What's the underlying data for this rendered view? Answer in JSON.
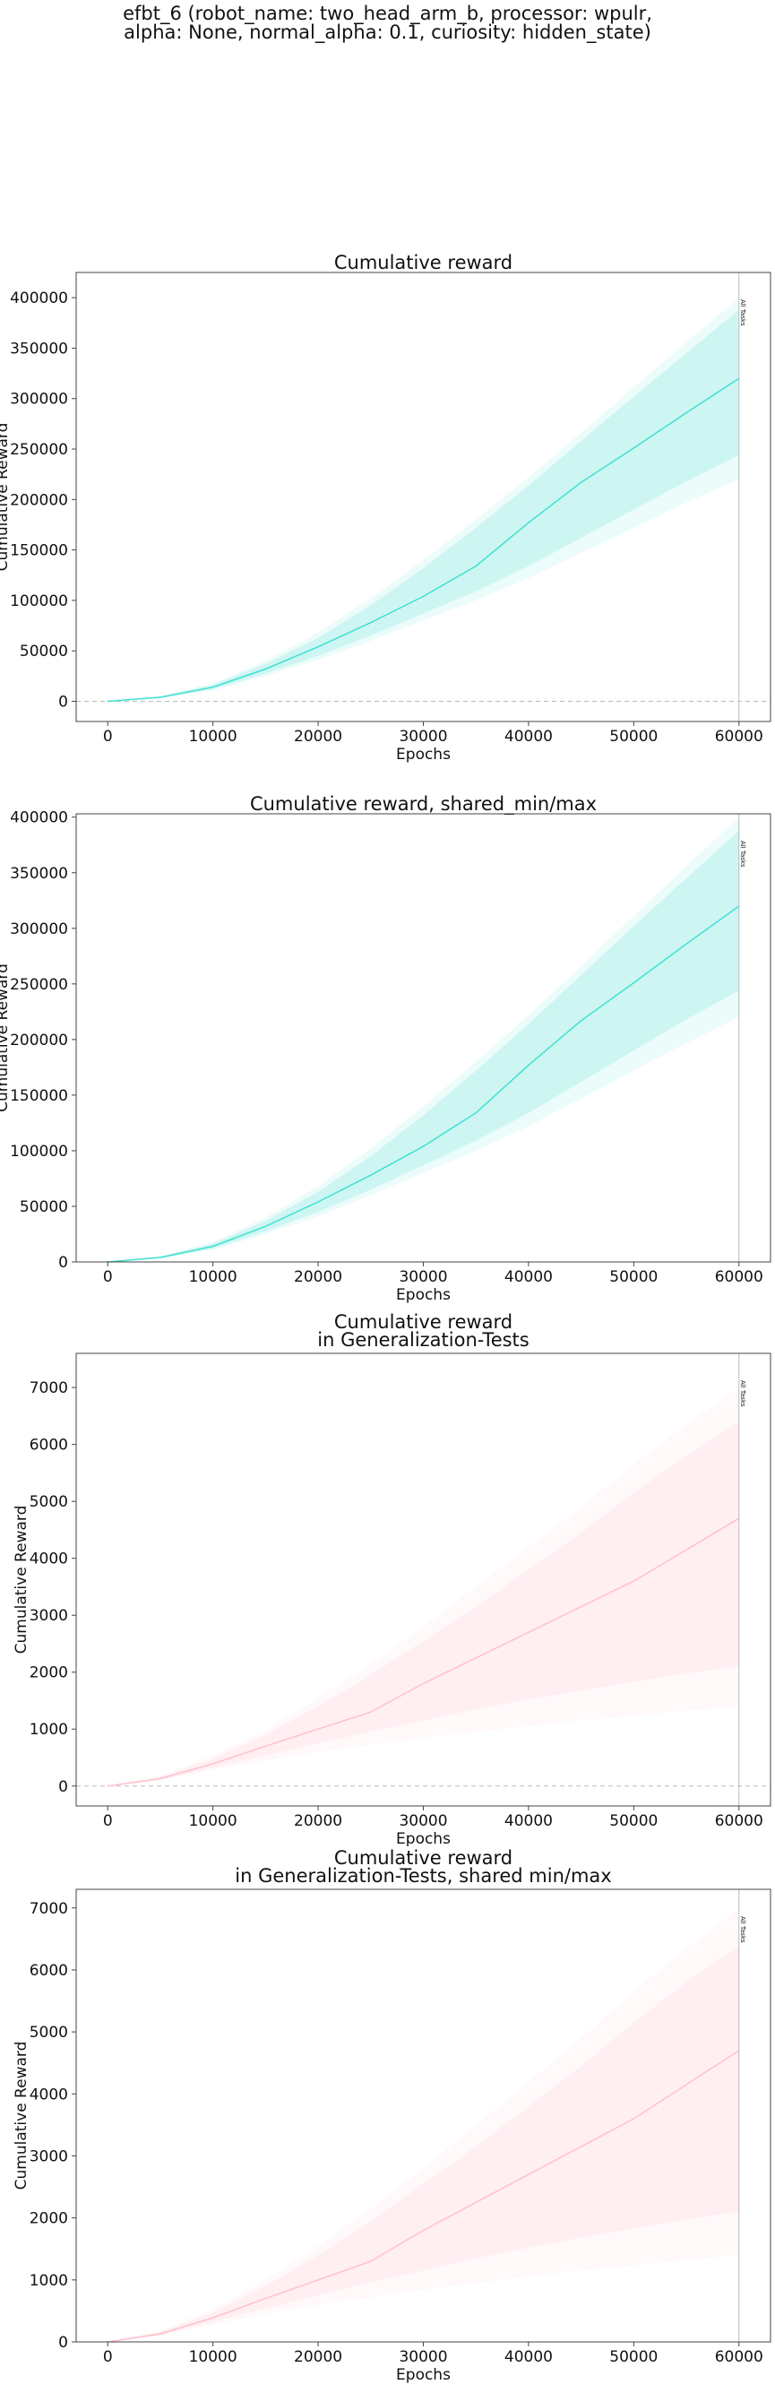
{
  "figure": {
    "suptitle_line1": "efbt_6 (robot_name: two_head_arm_b, processor: wpulr,",
    "suptitle_line2": "alpha: None, normal_alpha: 0.1, curiosity: hidden_state)"
  },
  "chart_data": [
    {
      "type": "line",
      "title": [
        "Cumulative reward"
      ],
      "xlabel": "Epochs",
      "ylabel": "Cumulative Reward",
      "xlim": [
        -3000,
        63000
      ],
      "ylim": [
        -20000,
        425000
      ],
      "xticks": [
        0,
        10000,
        20000,
        30000,
        40000,
        50000,
        60000
      ],
      "yticks": [
        0,
        50000,
        100000,
        150000,
        200000,
        250000,
        300000,
        350000,
        400000
      ],
      "zero_line": true,
      "vline": {
        "x": 60000,
        "label": "All Tasks"
      },
      "grid": false,
      "color": "#40e0d0",
      "series": [
        {
          "x": [
            0,
            5000,
            10000,
            15000,
            20000,
            25000,
            30000,
            35000,
            40000,
            45000,
            50000,
            55000,
            60000
          ],
          "mean": [
            0,
            4000,
            14000,
            32000,
            54000,
            78000,
            104000,
            134000,
            177000,
            217000,
            251000,
            286000,
            320000
          ],
          "band_inner": [
            [
              0,
              0,
              0,
              0,
              0,
              0,
              0,
              0,
              0,
              0,
              0,
              0,
              0
            ],
            [
              0,
              0,
              0,
              0,
              0,
              0,
              0,
              0,
              0,
              0,
              0,
              0,
              0
            ]
          ],
          "lower_outer": [
            0,
            3000,
            11000,
            25000,
            41000,
            60000,
            80000,
            100000,
            122000,
            147000,
            172000,
            197000,
            220000
          ],
          "lower_inner": [
            0,
            3400,
            12000,
            27500,
            45000,
            65000,
            87000,
            109000,
            134000,
            162000,
            190000,
            218000,
            244000
          ],
          "upper_inner": [
            0,
            4600,
            16500,
            37000,
            63000,
            95000,
            132000,
            172000,
            214000,
            258000,
            302000,
            345000,
            388000
          ],
          "upper_outer": [
            0,
            5000,
            18000,
            40000,
            68000,
            102000,
            140000,
            180000,
            222000,
            266000,
            311000,
            356000,
            400000
          ]
        }
      ]
    },
    {
      "type": "line",
      "title": [
        "Cumulative reward, shared_min/max"
      ],
      "xlabel": "Epochs",
      "ylabel": "Cumulative Reward",
      "xlim": [
        -3000,
        63000
      ],
      "ylim": [
        0,
        403000
      ],
      "xticks": [
        0,
        10000,
        20000,
        30000,
        40000,
        50000,
        60000
      ],
      "yticks": [
        0,
        50000,
        100000,
        150000,
        200000,
        250000,
        300000,
        350000,
        400000
      ],
      "zero_line": false,
      "vline": {
        "x": 60000,
        "label": "All Tasks"
      },
      "grid": false,
      "color": "#40e0d0",
      "series": [
        {
          "x": [
            0,
            5000,
            10000,
            15000,
            20000,
            25000,
            30000,
            35000,
            40000,
            45000,
            50000,
            55000,
            60000
          ],
          "mean": [
            0,
            4000,
            14000,
            32000,
            54000,
            78000,
            104000,
            134000,
            177000,
            217000,
            251000,
            286000,
            320000
          ],
          "lower_outer": [
            0,
            3000,
            11000,
            25000,
            41000,
            60000,
            80000,
            100000,
            122000,
            147000,
            172000,
            197000,
            220000
          ],
          "lower_inner": [
            0,
            3400,
            12000,
            27500,
            45000,
            65000,
            87000,
            109000,
            134000,
            162000,
            190000,
            218000,
            244000
          ],
          "upper_inner": [
            0,
            4600,
            16500,
            37000,
            63000,
            95000,
            132000,
            172000,
            214000,
            258000,
            302000,
            345000,
            388000
          ],
          "upper_outer": [
            0,
            5000,
            18000,
            40000,
            68000,
            102000,
            140000,
            180000,
            222000,
            266000,
            311000,
            356000,
            400000
          ]
        }
      ]
    },
    {
      "type": "line",
      "title": [
        "Cumulative reward",
        "in Generalization-Tests"
      ],
      "xlabel": "Epochs",
      "ylabel": "Cumulative Reward",
      "xlim": [
        -3000,
        63000
      ],
      "ylim": [
        -350,
        7600
      ],
      "xticks": [
        0,
        10000,
        20000,
        30000,
        40000,
        50000,
        60000
      ],
      "yticks": [
        0,
        1000,
        2000,
        3000,
        4000,
        5000,
        6000,
        7000
      ],
      "zero_line": true,
      "vline": {
        "x": 60000,
        "label": "All Tasks"
      },
      "grid": false,
      "color": "#ffc0cb",
      "series": [
        {
          "x": [
            0,
            5000,
            10000,
            15000,
            20000,
            25000,
            30000,
            35000,
            40000,
            45000,
            50000,
            55000,
            60000
          ],
          "mean": [
            0,
            130,
            390,
            700,
            1000,
            1300,
            1800,
            2250,
            2700,
            3150,
            3600,
            4150,
            4700
          ],
          "lower_outer": [
            0,
            100,
            280,
            450,
            600,
            720,
            840,
            950,
            1050,
            1150,
            1230,
            1320,
            1400
          ],
          "lower_inner": [
            0,
            110,
            320,
            540,
            750,
            960,
            1150,
            1350,
            1520,
            1680,
            1830,
            1980,
            2100
          ],
          "upper_inner": [
            0,
            160,
            480,
            900,
            1400,
            1950,
            2550,
            3150,
            3800,
            4450,
            5150,
            5800,
            6400
          ],
          "upper_outer": [
            0,
            180,
            540,
            1000,
            1550,
            2150,
            2800,
            3500,
            4200,
            4900,
            5650,
            6350,
            7000
          ]
        }
      ]
    },
    {
      "type": "line",
      "title": [
        "Cumulative reward",
        "in Generalization-Tests, shared min/max"
      ],
      "xlabel": "Epochs",
      "ylabel": "Cumulative Reward",
      "xlim": [
        -3000,
        63000
      ],
      "ylim": [
        0,
        7300
      ],
      "xticks": [
        0,
        10000,
        20000,
        30000,
        40000,
        50000,
        60000
      ],
      "yticks": [
        0,
        1000,
        2000,
        3000,
        4000,
        5000,
        6000,
        7000
      ],
      "zero_line": false,
      "vline": {
        "x": 60000,
        "label": "All Tasks"
      },
      "grid": false,
      "color": "#ffc0cb",
      "series": [
        {
          "x": [
            0,
            5000,
            10000,
            15000,
            20000,
            25000,
            30000,
            35000,
            40000,
            45000,
            50000,
            55000,
            60000
          ],
          "mean": [
            0,
            130,
            390,
            700,
            1000,
            1300,
            1800,
            2250,
            2700,
            3150,
            3600,
            4150,
            4700
          ],
          "lower_outer": [
            0,
            100,
            280,
            450,
            600,
            720,
            840,
            950,
            1050,
            1150,
            1230,
            1320,
            1400
          ],
          "lower_inner": [
            0,
            110,
            320,
            540,
            750,
            960,
            1150,
            1350,
            1520,
            1680,
            1830,
            1980,
            2100
          ],
          "upper_inner": [
            0,
            160,
            480,
            900,
            1400,
            1950,
            2550,
            3150,
            3800,
            4450,
            5150,
            5800,
            6400
          ],
          "upper_outer": [
            0,
            180,
            540,
            1000,
            1550,
            2150,
            2800,
            3500,
            4200,
            4900,
            5650,
            6350,
            7000
          ]
        }
      ]
    }
  ]
}
